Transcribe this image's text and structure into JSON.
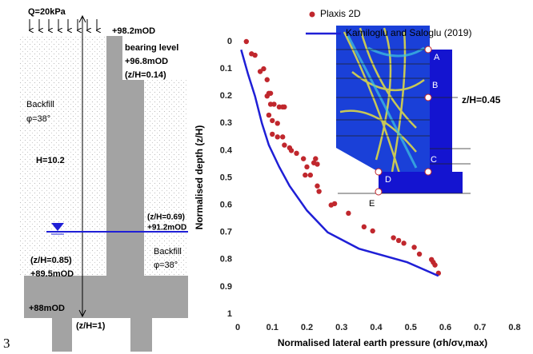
{
  "diagram": {
    "load": "Q=20kPa",
    "top_level": "+98.2mOD",
    "bearing_title": "bearing level",
    "bearing_level": "+96.8mOD",
    "bearing_ratio": "(z/H=0.14)",
    "backfill_upper": "Backfill",
    "phi_upper": "φ=38°",
    "height": "H=10.2",
    "water_ratio": "(z/H=0.69)",
    "water_level": "+91.2mOD",
    "backfill_lower": "Backfill",
    "phi_lower": "φ=38°",
    "slab_ratio": "(z/H=0.85)",
    "slab_level": "+89.5mOD",
    "base_level": "+88mOD",
    "base_ratio": "(z/H=1)",
    "figure_number": "3"
  },
  "inset": {
    "points": [
      "A",
      "B",
      "C",
      "D",
      "E"
    ],
    "annotation": "z/H=0.45"
  },
  "chart_data": {
    "type": "scatter",
    "xlabel": "Normalised lateral earth pressure (σh/σv,max)",
    "ylabel": "Normalised depth (z/H)",
    "xlim": [
      0,
      0.8
    ],
    "ylim": [
      0,
      1
    ],
    "y_inverted": true,
    "xticks": [
      0,
      0.1,
      0.2,
      0.3,
      0.4,
      0.5,
      0.6,
      0.7,
      0.8
    ],
    "yticks": [
      0,
      0.1,
      0.2,
      0.3,
      0.4,
      0.5,
      0.6,
      0.7,
      0.8,
      0.9,
      1
    ],
    "series": [
      {
        "name": "Plaxis 2D",
        "type": "scatter",
        "color": "#c0272d",
        "x": [
          0.025,
          0.04,
          0.05,
          0.075,
          0.065,
          0.085,
          0.09,
          0.085,
          0.095,
          0.105,
          0.12,
          0.13,
          0.135,
          0.095,
          0.09,
          0.1,
          0.115,
          0.1,
          0.115,
          0.13,
          0.135,
          0.15,
          0.155,
          0.17,
          0.19,
          0.225,
          0.23,
          0.22,
          0.2,
          0.195,
          0.21,
          0.23,
          0.235,
          0.27,
          0.28,
          0.32,
          0.365,
          0.39,
          0.45,
          0.465,
          0.48,
          0.51,
          0.525,
          0.56,
          0.565,
          0.57,
          0.58
        ],
        "values": [
          0.0,
          0.045,
          0.05,
          0.1,
          0.11,
          0.14,
          0.19,
          0.2,
          0.19,
          0.23,
          0.24,
          0.24,
          0.24,
          0.23,
          0.27,
          0.29,
          0.3,
          0.34,
          0.35,
          0.35,
          0.38,
          0.39,
          0.4,
          0.41,
          0.43,
          0.43,
          0.45,
          0.445,
          0.46,
          0.49,
          0.49,
          0.53,
          0.55,
          0.6,
          0.595,
          0.63,
          0.68,
          0.695,
          0.72,
          0.73,
          0.74,
          0.755,
          0.78,
          0.8,
          0.81,
          0.82,
          0.85
        ]
      },
      {
        "name": "Kamiloglu and Saloglu (2019)",
        "type": "line",
        "color": "#1f1fd6",
        "x": [
          0.01,
          0.03,
          0.05,
          0.07,
          0.09,
          0.12,
          0.15,
          0.2,
          0.26,
          0.35,
          0.49,
          0.58
        ],
        "values": [
          0.03,
          0.12,
          0.2,
          0.3,
          0.38,
          0.46,
          0.53,
          0.62,
          0.7,
          0.76,
          0.81,
          0.86
        ]
      }
    ]
  }
}
